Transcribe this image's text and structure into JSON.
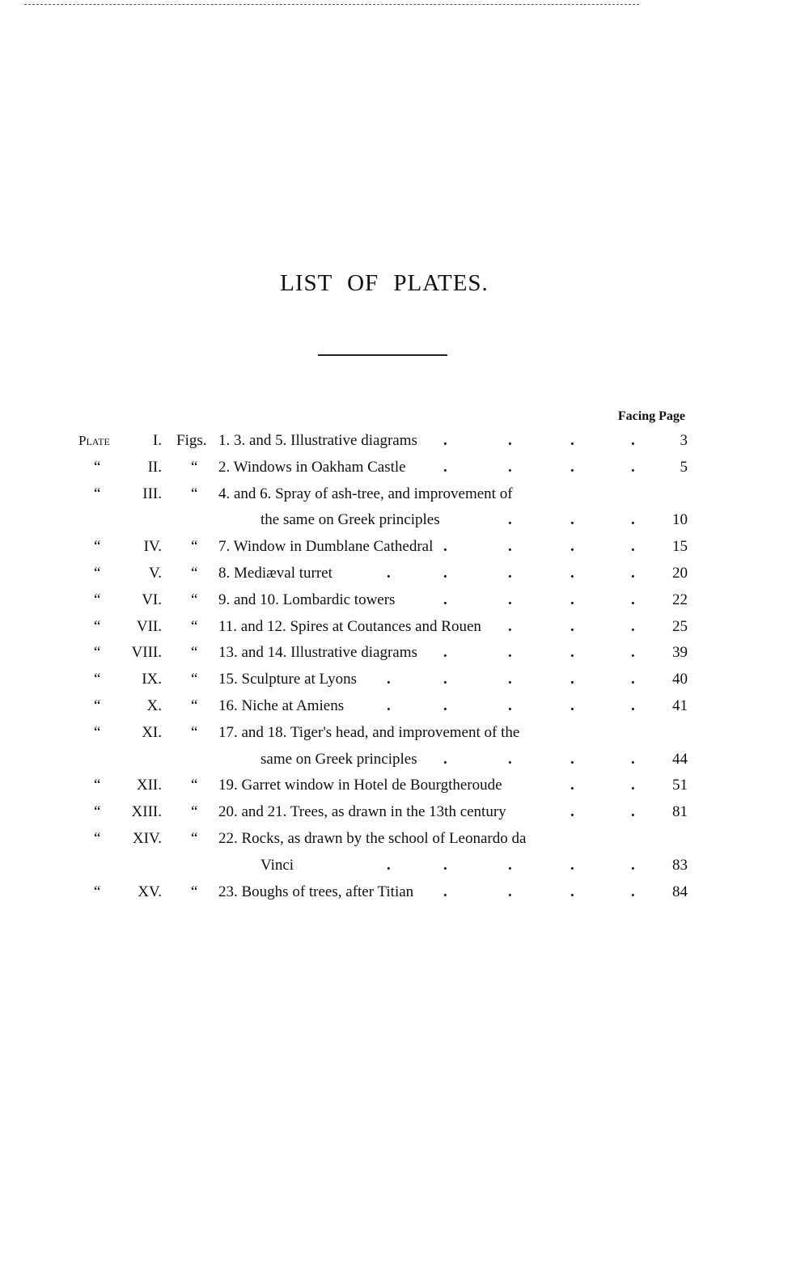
{
  "title": "LIST OF PLATES.",
  "column_header": "Facing Page",
  "plate_label": "Plate",
  "figs_label": "Figs.",
  "ditto": "“",
  "rows": [
    {
      "plate": "I.",
      "desc": "1. 3. and 5.  Illustrative diagrams",
      "page": "3",
      "first": true
    },
    {
      "plate": "II.",
      "desc": "2.  Windows in Oakham Castle",
      "page": "5"
    },
    {
      "plate": "III.",
      "desc": "4. and 6.   Spray of ash-tree, and improvement of",
      "page": ""
    },
    {
      "plate": "",
      "desc": "the same on Greek principles",
      "page": "10",
      "cont": true
    },
    {
      "plate": "IV.",
      "desc": "7.  Window in Dumblane Cathedral",
      "page": "15"
    },
    {
      "plate": "V.",
      "desc": "8.  Mediæval turret",
      "page": "20"
    },
    {
      "plate": "VI.",
      "desc": "9. and 10.  Lombardic towers",
      "page": "22"
    },
    {
      "plate": "VII.",
      "desc": "11. and 12.  Spires at Coutances and Rouen",
      "page": "25"
    },
    {
      "plate": "VIII.",
      "desc": "13. and 14.  Illustrative diagrams",
      "page": "39"
    },
    {
      "plate": "IX.",
      "desc": "15.  Sculpture at Lyons",
      "page": "40"
    },
    {
      "plate": "X.",
      "desc": "16.  Niche at Amiens",
      "page": "41"
    },
    {
      "plate": "XI.",
      "desc": "17. and 18.  Tiger's head, and improvement of the",
      "page": ""
    },
    {
      "plate": "",
      "desc": "same on Greek principles",
      "page": "44",
      "cont": true
    },
    {
      "plate": "XII.",
      "desc": "19.  Garret window in Hotel de Bourgtheroude",
      "page": "51"
    },
    {
      "plate": "XIII.",
      "desc": "20. and 21.  Trees, as drawn in the 13th century",
      "page": "81"
    },
    {
      "plate": "XIV.",
      "desc": "22.  Rocks, as drawn by the school of Leonardo da",
      "page": ""
    },
    {
      "plate": "",
      "desc": "Vinci",
      "page": "83",
      "cont": true
    },
    {
      "plate": "XV.",
      "desc": "23.  Boughs of trees, after Titian",
      "page": "84"
    }
  ]
}
